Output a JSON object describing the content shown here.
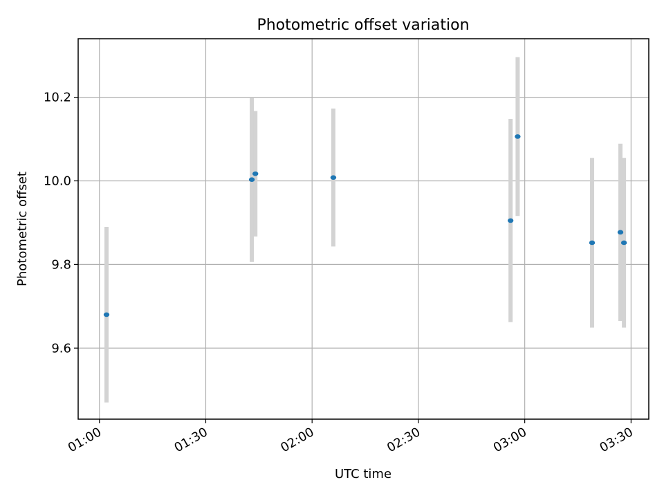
{
  "chart_data": {
    "type": "scatter",
    "title": "Photometric offset variation",
    "xlabel": "UTC time",
    "ylabel": "Photometric offset",
    "x_ticks": [
      "01:00",
      "01:30",
      "02:00",
      "02:30",
      "03:00",
      "03:30"
    ],
    "y_ticks": [
      "9.6",
      "9.8",
      "10.0",
      "10.2"
    ],
    "xlim": [
      "00:54",
      "03:35"
    ],
    "ylim": [
      9.43,
      10.34
    ],
    "grid": true,
    "marker_color": "#1f77b4",
    "errorbar_color": "#d3d3d3",
    "points": [
      {
        "x": "01:02",
        "y": 9.68,
        "yerr": 0.21
      },
      {
        "x": "01:43",
        "y": 10.003,
        "yerr": 0.197
      },
      {
        "x": "01:44",
        "y": 10.017,
        "yerr": 0.15
      },
      {
        "x": "02:06",
        "y": 10.008,
        "yerr": 0.165
      },
      {
        "x": "02:56",
        "y": 9.905,
        "yerr": 0.243
      },
      {
        "x": "02:58",
        "y": 10.106,
        "yerr": 0.19
      },
      {
        "x": "03:19",
        "y": 9.852,
        "yerr": 0.203
      },
      {
        "x": "03:27",
        "y": 9.877,
        "yerr": 0.212
      },
      {
        "x": "03:28",
        "y": 9.852,
        "yerr": 0.203
      }
    ]
  }
}
